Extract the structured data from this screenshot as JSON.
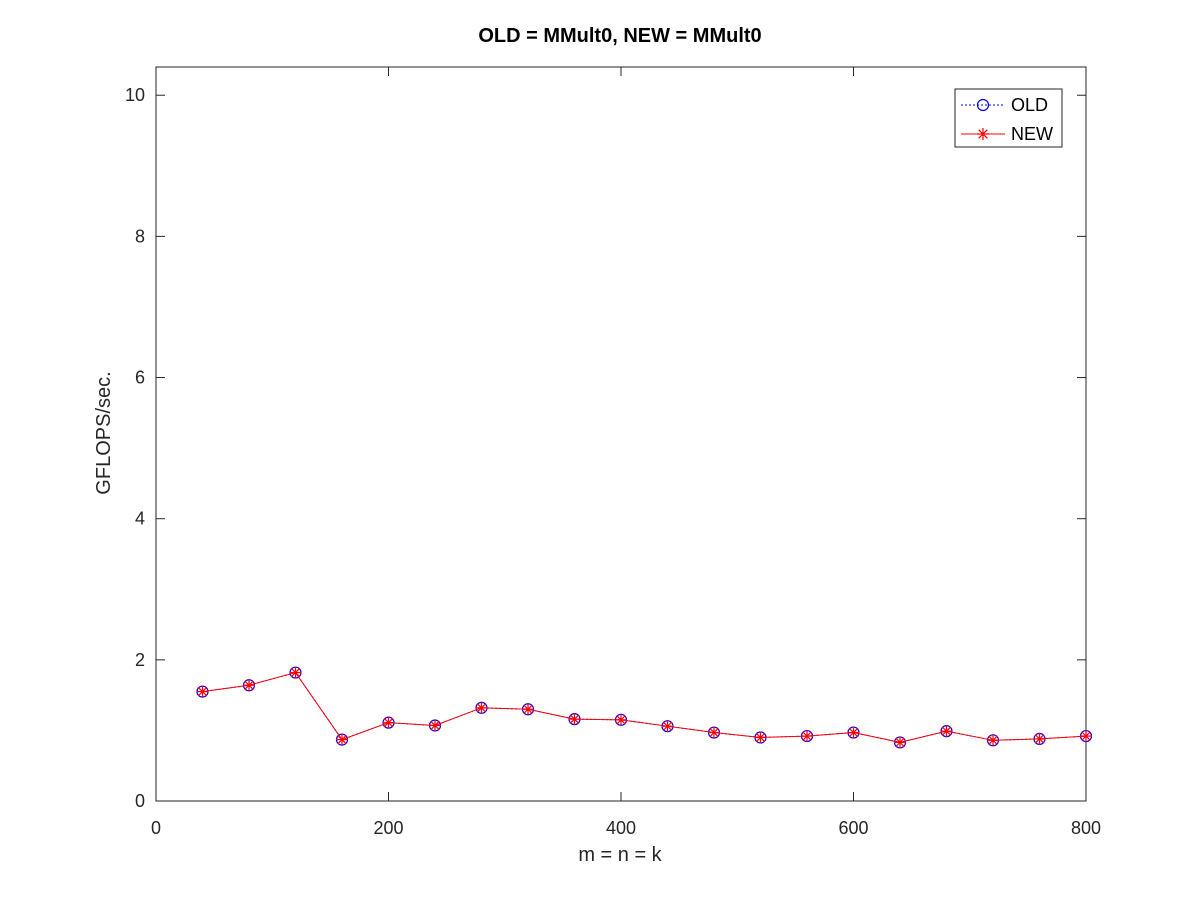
{
  "chart_data": {
    "type": "line",
    "title": "OLD = MMult0, NEW = MMult0",
    "xlabel": "m = n = k",
    "ylabel": "GFLOPS/sec.",
    "xlim": [
      0,
      800
    ],
    "ylim": [
      0,
      10.4
    ],
    "xticks": [
      0,
      200,
      400,
      600,
      800
    ],
    "yticks": [
      0,
      2,
      4,
      6,
      8,
      10
    ],
    "grid": false,
    "legend_position": "top-right",
    "x": [
      40,
      80,
      120,
      160,
      200,
      240,
      280,
      320,
      360,
      400,
      440,
      480,
      520,
      560,
      600,
      640,
      680,
      720,
      760,
      800
    ],
    "series": [
      {
        "name": "OLD",
        "color": "#0000ff",
        "marker": "circle",
        "line_style": "dotted",
        "values": [
          1.55,
          1.64,
          1.82,
          0.87,
          1.11,
          1.07,
          1.32,
          1.3,
          1.16,
          1.15,
          1.06,
          0.97,
          0.9,
          0.92,
          0.97,
          0.83,
          0.99,
          0.86,
          0.88,
          0.92
        ]
      },
      {
        "name": "NEW",
        "color": "#ff0000",
        "marker": "asterisk",
        "line_style": "solid",
        "values": [
          1.55,
          1.64,
          1.82,
          0.87,
          1.11,
          1.07,
          1.32,
          1.3,
          1.16,
          1.15,
          1.06,
          0.97,
          0.9,
          0.92,
          0.97,
          0.83,
          0.99,
          0.86,
          0.88,
          0.92
        ]
      }
    ]
  }
}
